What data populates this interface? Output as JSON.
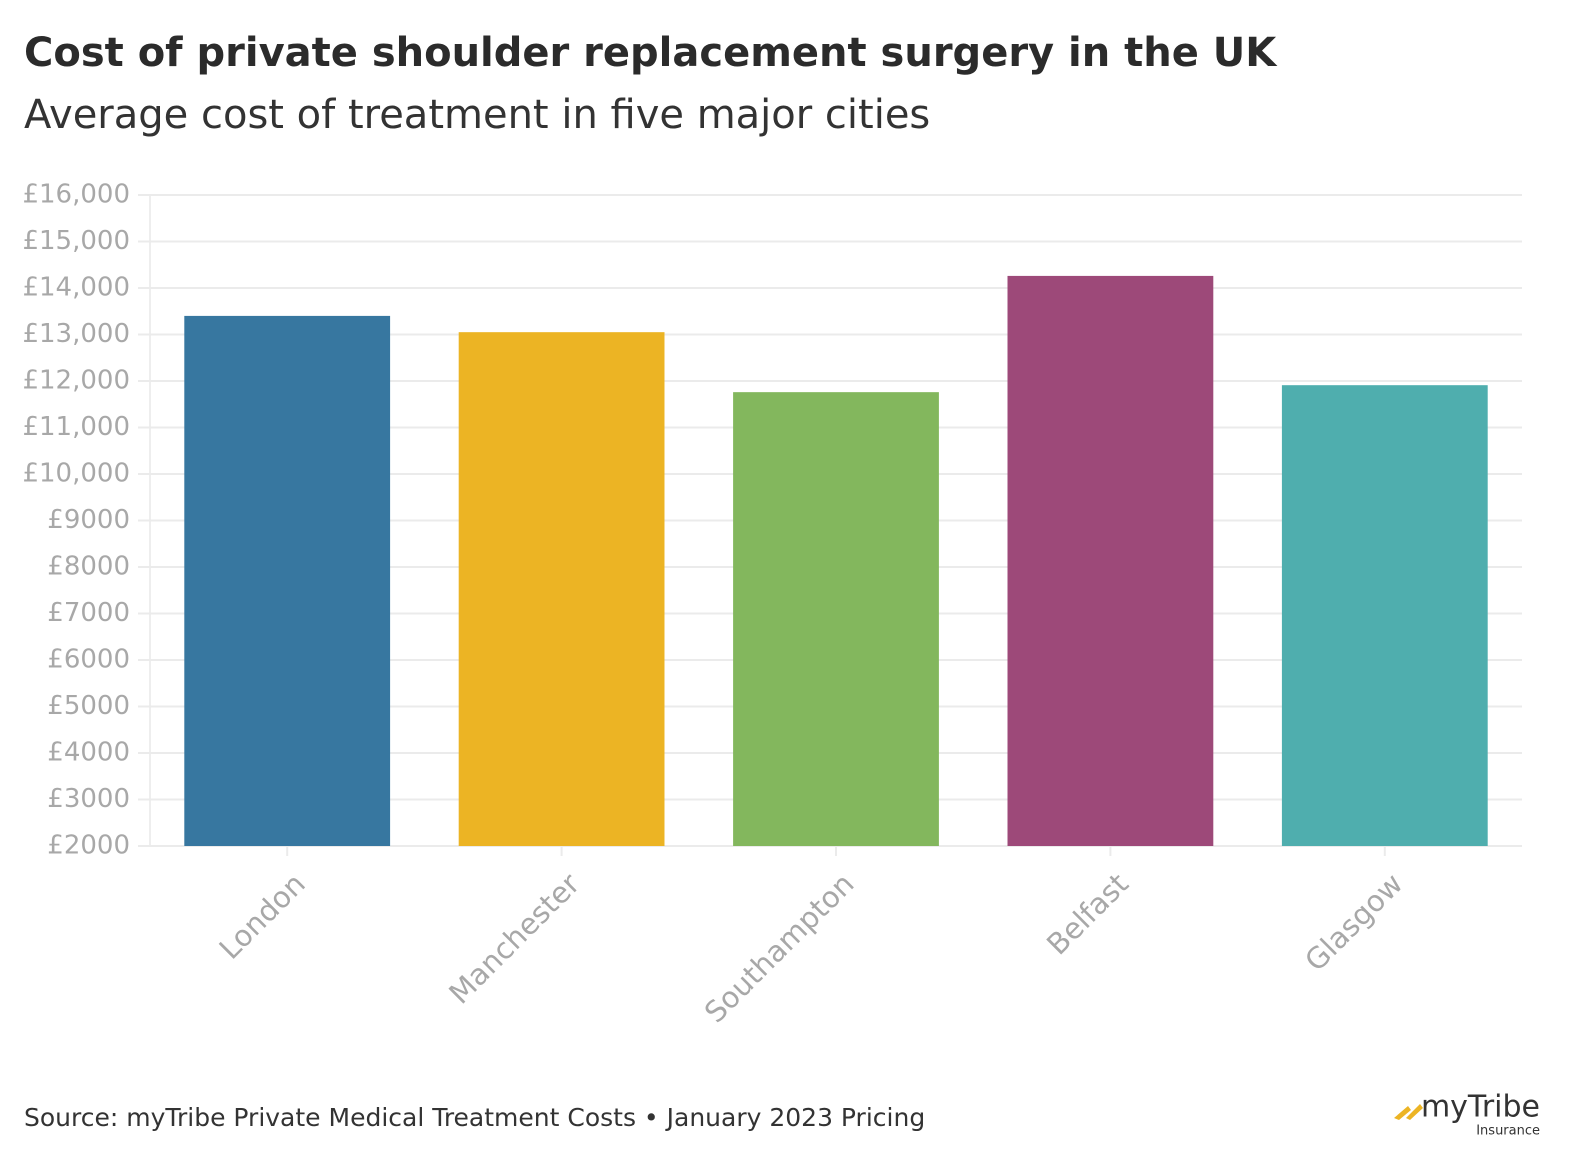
{
  "chart_data": {
    "type": "bar",
    "title": "Cost of private shoulder replacement surgery in the UK",
    "subtitle": "Average cost of treatment in five major cities",
    "categories": [
      "London",
      "Manchester",
      "Southampton",
      "Belfast",
      "Glasgow"
    ],
    "values": [
      13400,
      13050,
      11760,
      14260,
      11910
    ],
    "colors": [
      "#3777a0",
      "#ecb424",
      "#83b75d",
      "#9d4979",
      "#4faeae"
    ],
    "ylim": [
      2000,
      16000
    ],
    "yticks": [
      {
        "value": 2000,
        "label": "£2000"
      },
      {
        "value": 3000,
        "label": "£3000"
      },
      {
        "value": 4000,
        "label": "£4000"
      },
      {
        "value": 5000,
        "label": "£5000"
      },
      {
        "value": 6000,
        "label": "£6000"
      },
      {
        "value": 7000,
        "label": "£7000"
      },
      {
        "value": 8000,
        "label": "£8000"
      },
      {
        "value": 9000,
        "label": "£9000"
      },
      {
        "value": 10000,
        "label": "£10,000"
      },
      {
        "value": 11000,
        "label": "£11,000"
      },
      {
        "value": 12000,
        "label": "£12,000"
      },
      {
        "value": 13000,
        "label": "£13,000"
      },
      {
        "value": 14000,
        "label": "£14,000"
      },
      {
        "value": 15000,
        "label": "£15,000"
      },
      {
        "value": 16000,
        "label": "£16,000"
      }
    ],
    "grid": true,
    "source": "Source: myTribe Private Medical Treatment Costs • January 2023 Pricing"
  },
  "logo": {
    "name": "myTribe",
    "tagline": "Insurance"
  }
}
